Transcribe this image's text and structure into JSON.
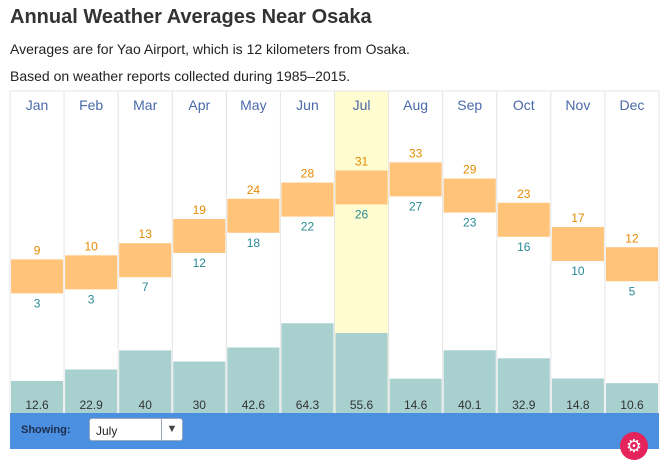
{
  "header": {
    "title": "Annual Weather Averages Near Osaka",
    "subtitle_location": "Averages are for Yao Airport, which is 12 kilometers from Osaka.",
    "subtitle_period": "Based on weather reports collected during 1985–2015."
  },
  "toolbar": {
    "showing_label": "Showing:",
    "selected_month": "July"
  },
  "colors": {
    "temp_band": "#ffc47a",
    "high_text": "#e58a00",
    "low_text": "#2a8a94",
    "precip_bar": "#a8d0cf",
    "highlight": "#fefcd0",
    "month_text": "#4a6aa8",
    "toolbar": "#4a8fe0",
    "gear": "#e4245a"
  },
  "icons": {
    "dropdown": "chevron-down-icon",
    "settings": "gear-icon"
  },
  "chart_data": {
    "type": "bar",
    "categories": [
      "Jan",
      "Feb",
      "Mar",
      "Apr",
      "May",
      "Jun",
      "Jul",
      "Aug",
      "Sep",
      "Oct",
      "Nov",
      "Dec"
    ],
    "highlighted_category": "Jul",
    "temperature_ylim": [
      -6,
      42
    ],
    "precip_ylim": [
      0,
      130
    ],
    "series": [
      {
        "values": [
          9,
          10,
          13,
          19,
          24,
          28,
          31,
          33,
          29,
          23,
          17,
          12
        ]
      },
      {
        "values": [
          3,
          3,
          7,
          12,
          18,
          22,
          26,
          27,
          23,
          16,
          10,
          5
        ]
      },
      {
        "values": [
          12.6,
          22.9,
          40,
          30,
          42.6,
          64.3,
          55.6,
          14.6,
          40.1,
          32.9,
          14.8,
          10.6
        ]
      }
    ]
  }
}
